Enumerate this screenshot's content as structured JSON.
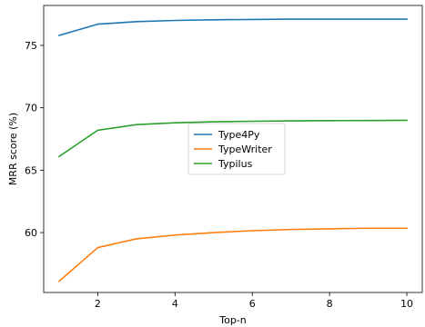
{
  "chart_data": {
    "type": "line",
    "title": "",
    "xlabel": "Top-n",
    "ylabel": "MRR score (%)",
    "xlim": [
      0.6,
      10.4
    ],
    "ylim": [
      55.2,
      78.2
    ],
    "xticks": [
      2,
      4,
      6,
      8,
      10
    ],
    "yticks": [
      60,
      65,
      70,
      75
    ],
    "grid": false,
    "legend_position": "center",
    "x": [
      1,
      2,
      3,
      4,
      5,
      6,
      7,
      8,
      9,
      10
    ],
    "series": [
      {
        "name": "Type4Py",
        "color": "#1f77b4",
        "values": [
          75.8,
          76.7,
          76.9,
          77.0,
          77.05,
          77.08,
          77.1,
          77.1,
          77.1,
          77.1
        ]
      },
      {
        "name": "TypeWriter",
        "color": "#ff7f0e",
        "values": [
          56.1,
          58.8,
          59.5,
          59.8,
          60.0,
          60.15,
          60.25,
          60.3,
          60.35,
          60.35
        ]
      },
      {
        "name": "Typilus",
        "color": "#2ca02c",
        "values": [
          66.1,
          68.2,
          68.65,
          68.8,
          68.88,
          68.92,
          68.95,
          68.97,
          68.98,
          69.0
        ]
      }
    ]
  }
}
